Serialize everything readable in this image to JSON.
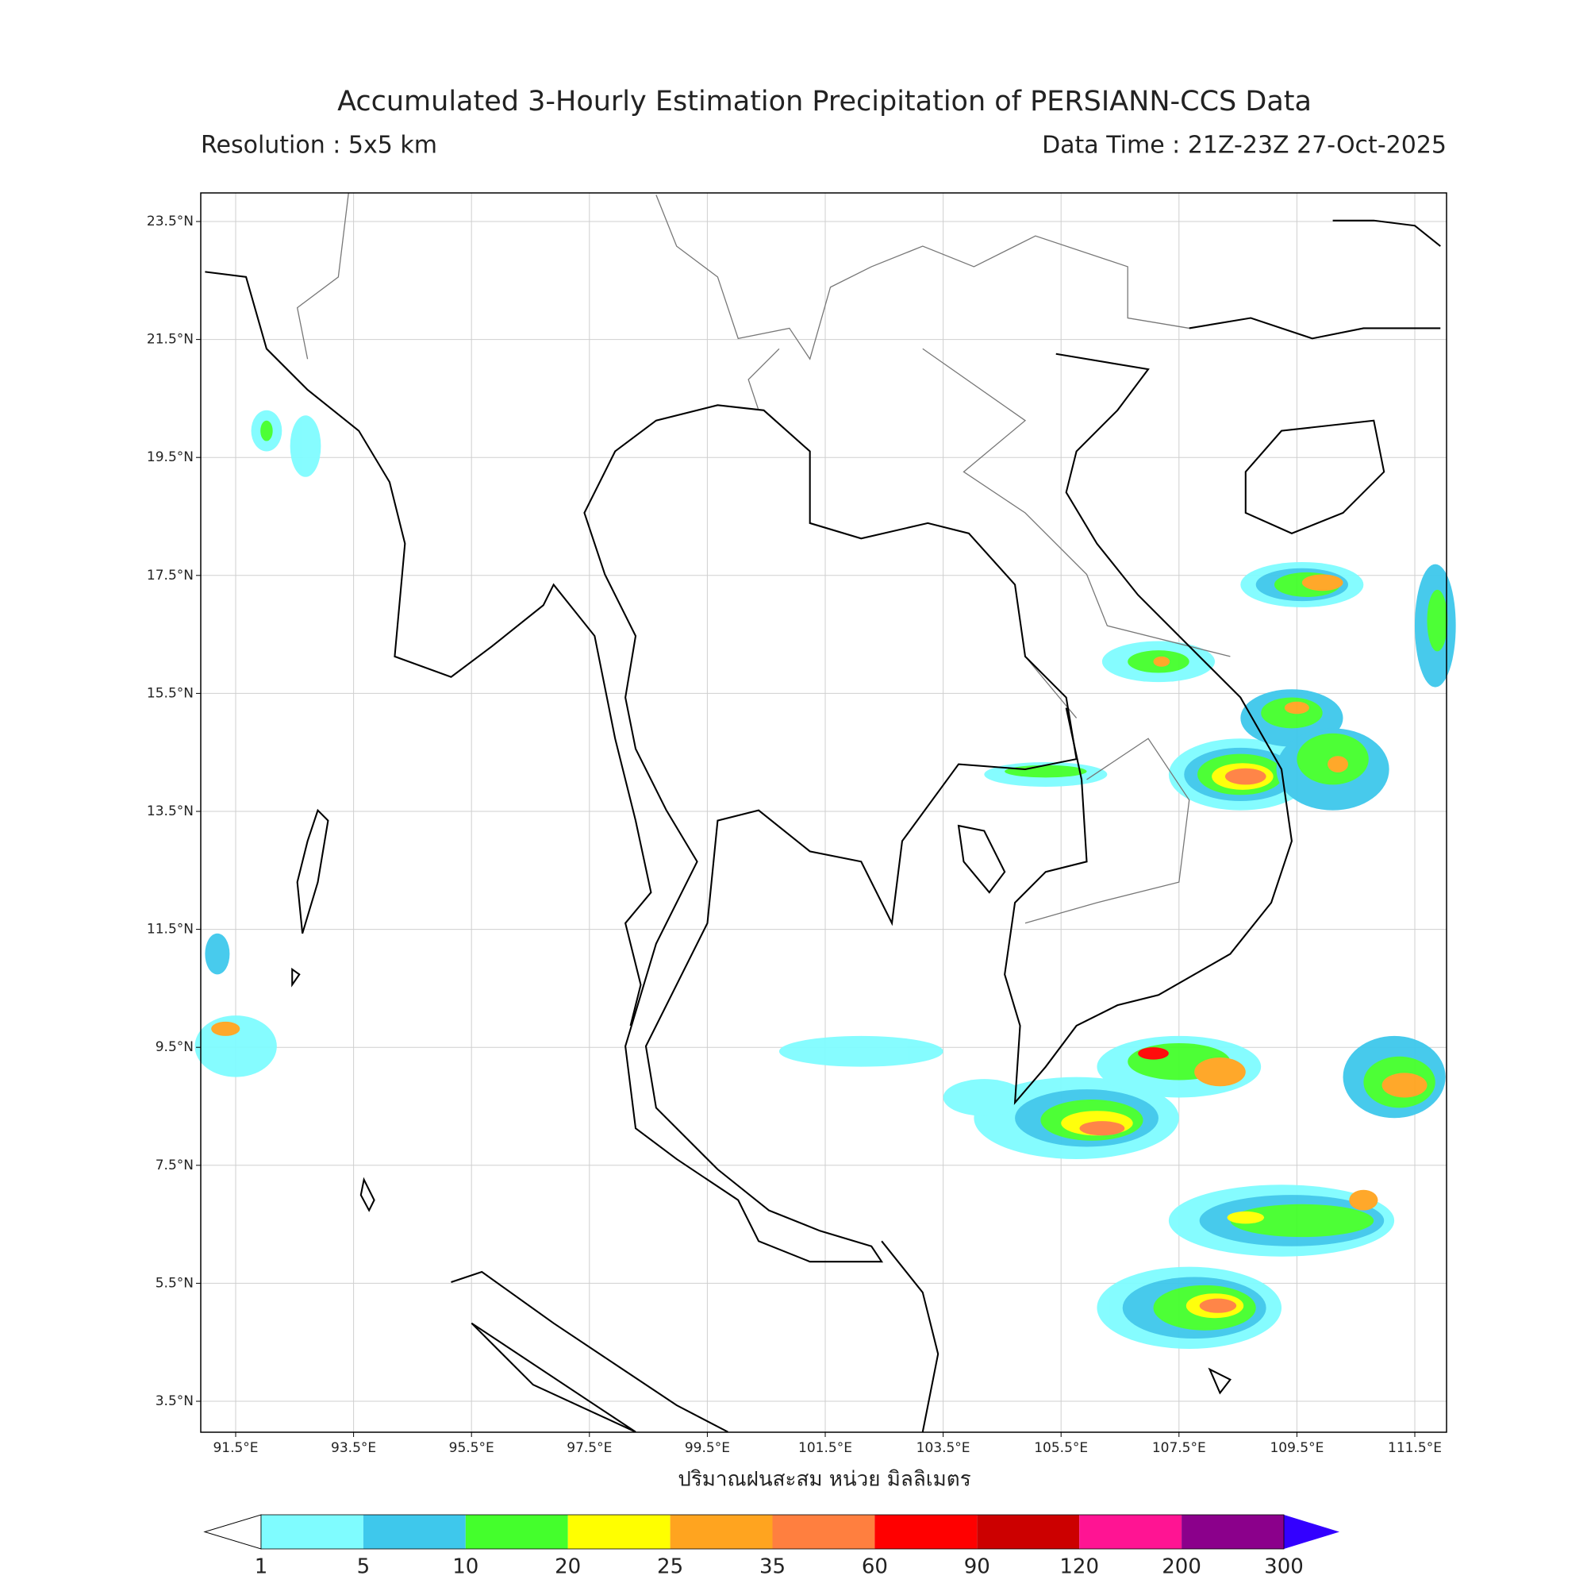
{
  "title": "Accumulated 3-Hourly Estimation Precipitation of PERSIANN-CCS Data",
  "resolution": "Resolution : 5x5 km",
  "data_time": "Data Time : 21Z-23Z 27-Oct-2025",
  "x_label": "ปริมาณฝนสะสม หน่วย มิลลิเมตร",
  "lat_ticks": [
    {
      "value": 23.5,
      "label": "23.5°N"
    },
    {
      "value": 21.5,
      "label": "21.5°N"
    },
    {
      "value": 19.5,
      "label": "19.5°N"
    },
    {
      "value": 17.5,
      "label": "17.5°N"
    },
    {
      "value": 15.5,
      "label": "15.5°N"
    },
    {
      "value": 13.5,
      "label": "13.5°N"
    },
    {
      "value": 11.5,
      "label": "11.5°N"
    },
    {
      "value": 9.5,
      "label": "9.5°N"
    },
    {
      "value": 7.5,
      "label": "7.5°N"
    },
    {
      "value": 5.5,
      "label": "5.5°N"
    },
    {
      "value": 3.5,
      "label": "3.5°N"
    }
  ],
  "lon_ticks": [
    {
      "value": 91.5,
      "label": "91.5°E"
    },
    {
      "value": 93.5,
      "label": "93.5°E"
    },
    {
      "value": 95.5,
      "label": "95.5°E"
    },
    {
      "value": 97.5,
      "label": "97.5°E"
    },
    {
      "value": 99.5,
      "label": "99.5°E"
    },
    {
      "value": 101.5,
      "label": "101.5°E"
    },
    {
      "value": 103.5,
      "label": "103.5°E"
    },
    {
      "value": 105.5,
      "label": "105.5°E"
    },
    {
      "value": 107.5,
      "label": "107.5°E"
    },
    {
      "value": 109.5,
      "label": "109.5°E"
    },
    {
      "value": 111.5,
      "label": "111.5°E"
    }
  ],
  "colorbar": {
    "levels": [
      1,
      5,
      10,
      20,
      25,
      35,
      60,
      90,
      120,
      200,
      300
    ],
    "colors": [
      "#7ffcff",
      "#3ec8ec",
      "#44ff2c",
      "#ffff00",
      "#ffa41f",
      "#ff7f3f",
      "#ff0000",
      "#cc0000",
      "#ff1493",
      "#8b008b"
    ],
    "under_color": "#ffffff",
    "over_color": "#3300ff"
  }
}
